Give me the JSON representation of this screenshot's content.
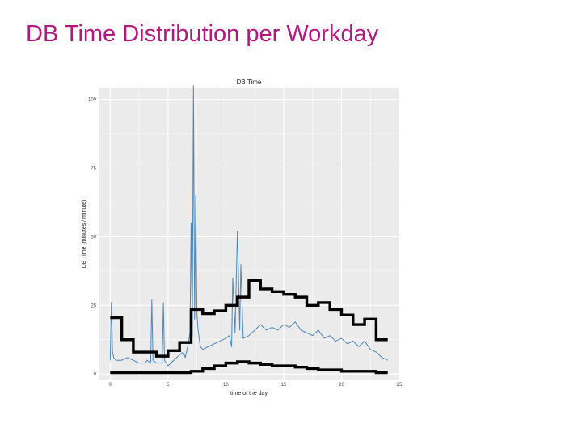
{
  "slide": {
    "title": "DB Time Distribution per Workday"
  },
  "chart_data": {
    "type": "line",
    "title": "DB Time",
    "xlabel": "time of the day",
    "ylabel": "DB Time (minutes / minute)",
    "xlim": [
      -1,
      25
    ],
    "ylim": [
      -2,
      104
    ],
    "x_ticks": [
      0,
      5,
      10,
      15,
      20,
      25
    ],
    "y_ticks": [
      0,
      25,
      50,
      75,
      100
    ],
    "grid": true,
    "colors": {
      "series": "#4f86b8",
      "bands": "#000000",
      "panel": "#ebebeb",
      "grid": "#ffffff"
    },
    "series": [
      {
        "style": "thin-line",
        "x": [
          0,
          0.1,
          0.2,
          0.3,
          0.5,
          1,
          1.5,
          2,
          2.5,
          3,
          3.2,
          3.5,
          3.6,
          3.7,
          4,
          4.5,
          4.6,
          4.7,
          5,
          5.5,
          6,
          6.3,
          6.5,
          6.7,
          6.9,
          7,
          7.1,
          7.2,
          7.3,
          7.4,
          7.5,
          7.6,
          7.8,
          8,
          8.5,
          9,
          9.5,
          10,
          10.3,
          10.5,
          10.6,
          10.8,
          11,
          11.2,
          11.3,
          11.5,
          12,
          12.5,
          13,
          13.5,
          14,
          14.5,
          15,
          15.5,
          16,
          16.5,
          17,
          17.5,
          18,
          18.5,
          19,
          19.5,
          20,
          20.5,
          21,
          21.5,
          22,
          22.5,
          23,
          23.5,
          24
        ],
        "y": [
          5,
          26,
          8,
          6,
          5,
          5,
          6,
          5,
          4,
          4,
          5,
          4,
          27,
          5,
          4,
          4,
          26,
          5,
          3,
          5,
          7,
          8,
          6,
          10,
          15,
          55,
          14,
          105,
          20,
          65,
          22,
          16,
          10,
          9,
          10,
          11,
          12,
          13,
          14,
          10,
          35,
          15,
          52,
          16,
          40,
          13,
          14,
          16,
          18,
          16,
          17,
          16,
          18,
          17,
          19,
          16,
          15,
          14,
          16,
          13,
          14,
          12,
          13,
          11,
          12,
          10,
          12,
          9,
          8,
          6,
          5
        ]
      },
      {
        "style": "thick-step",
        "x": [
          0,
          1,
          2,
          3,
          4,
          5,
          6,
          7,
          8,
          9,
          10,
          11,
          12,
          13,
          14,
          15,
          16,
          17,
          18,
          19,
          20,
          21,
          22,
          23,
          24
        ],
        "y": [
          20.5,
          12.5,
          8,
          8,
          6.5,
          8.5,
          11.5,
          23.5,
          22,
          23,
          25,
          28,
          34,
          31,
          30,
          29,
          28,
          25,
          26,
          23.5,
          21.5,
          18,
          20,
          12.5,
          12.5
        ]
      },
      {
        "style": "thick-step",
        "x": [
          0,
          1,
          2,
          3,
          4,
          5,
          6,
          7,
          8,
          9,
          10,
          11,
          12,
          13,
          14,
          15,
          16,
          17,
          18,
          19,
          20,
          21,
          22,
          23,
          24
        ],
        "y": [
          0.5,
          0.5,
          0.5,
          0.5,
          0.5,
          0.5,
          0.5,
          1,
          2,
          3,
          4,
          4.5,
          4,
          3.5,
          3,
          3,
          2.5,
          2,
          1.5,
          1.5,
          1,
          1,
          1,
          0.5,
          0.5
        ]
      }
    ]
  }
}
